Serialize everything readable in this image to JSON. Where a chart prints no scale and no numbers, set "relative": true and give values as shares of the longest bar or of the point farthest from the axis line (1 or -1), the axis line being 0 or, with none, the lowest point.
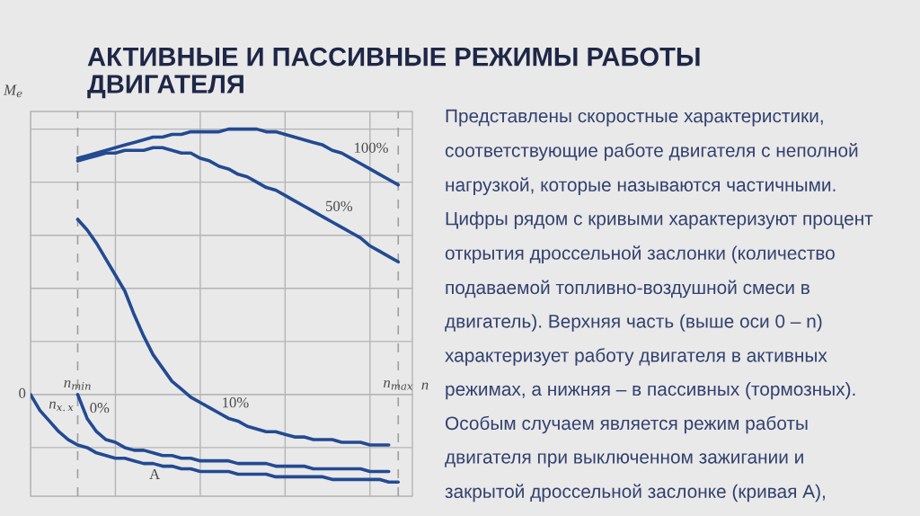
{
  "chart_data": {
    "type": "line",
    "title": "АКТИВНЫЕ И ПАССИВНЫЕ РЕЖИМЫ РАБОТЫ\nДВИГАТЕЛЯ",
    "xlabel": "n",
    "ylabel": "M$_{e}$",
    "relative": true,
    "grid": true,
    "legend": false,
    "marker": "none",
    "line_style": "solid",
    "categories": [
      null,
      null,
      null,
      null,
      null,
      "n$_{min}$",
      null,
      null,
      null,
      null,
      null,
      null,
      null,
      null,
      null,
      null,
      null,
      null,
      null,
      null,
      null,
      null,
      null,
      null,
      null,
      null,
      null,
      null,
      null,
      null,
      null,
      null,
      null,
      null,
      null,
      null,
      null,
      null,
      null,
      "n$_{max}$",
      null
    ],
    "series": [
      {
        "name": "100%",
        "color": "#234a92",
        "values": [
          null,
          null,
          null,
          null,
          null,
          0.89,
          0.9,
          0.91,
          0.92,
          0.93,
          0.94,
          0.95,
          0.96,
          0.97,
          0.97,
          0.98,
          0.98,
          0.99,
          0.99,
          0.99,
          0.99,
          1.0,
          1.0,
          1.0,
          1.0,
          0.99,
          0.99,
          0.98,
          0.97,
          0.96,
          0.95,
          0.94,
          0.92,
          0.91,
          0.89,
          0.87,
          0.85,
          0.83,
          0.81,
          0.79,
          null
        ]
      },
      {
        "name": "50%",
        "color": "#234a92",
        "values": [
          null,
          null,
          null,
          null,
          null,
          0.88,
          0.89,
          0.9,
          0.91,
          0.91,
          0.92,
          0.92,
          0.92,
          0.93,
          0.93,
          0.92,
          0.91,
          0.91,
          0.89,
          0.88,
          0.86,
          0.85,
          0.83,
          0.82,
          0.8,
          0.78,
          0.77,
          0.75,
          0.73,
          0.71,
          0.69,
          0.67,
          0.65,
          0.63,
          0.61,
          0.59,
          0.56,
          0.54,
          0.52,
          0.5,
          null
        ]
      },
      {
        "name": "10%",
        "color": "#234a92",
        "values": [
          null,
          null,
          null,
          null,
          null,
          0.66,
          0.62,
          0.57,
          0.51,
          0.45,
          0.39,
          0.3,
          0.22,
          0.15,
          0.1,
          0.05,
          0.02,
          -0.01,
          -0.03,
          -0.05,
          -0.07,
          -0.09,
          -0.1,
          -0.12,
          -0.13,
          -0.14,
          -0.14,
          -0.15,
          -0.16,
          -0.16,
          -0.17,
          -0.17,
          -0.17,
          -0.18,
          -0.18,
          -0.18,
          -0.19,
          -0.19,
          -0.19,
          null,
          null
        ]
      },
      {
        "name": "0%",
        "color": "#234a92",
        "values": [
          null,
          null,
          null,
          null,
          null,
          0,
          -0.09,
          -0.14,
          -0.17,
          -0.18,
          -0.2,
          -0.21,
          -0.21,
          -0.22,
          -0.23,
          -0.23,
          -0.24,
          -0.24,
          -0.25,
          -0.25,
          -0.25,
          -0.25,
          -0.26,
          -0.26,
          -0.26,
          -0.26,
          -0.27,
          -0.27,
          -0.27,
          -0.27,
          -0.28,
          -0.28,
          -0.28,
          -0.28,
          -0.28,
          -0.28,
          -0.29,
          -0.29,
          -0.29,
          null,
          null
        ]
      },
      {
        "name": "A",
        "color": "#234a92",
        "values": [
          0,
          -0.06,
          -0.1,
          -0.14,
          -0.17,
          -0.19,
          -0.2,
          -0.22,
          -0.23,
          -0.24,
          -0.24,
          -0.25,
          -0.26,
          -0.26,
          -0.27,
          -0.27,
          -0.28,
          -0.28,
          -0.29,
          -0.29,
          -0.29,
          -0.29,
          -0.3,
          -0.3,
          -0.3,
          -0.3,
          -0.31,
          -0.31,
          -0.31,
          -0.31,
          -0.31,
          -0.31,
          -0.32,
          -0.32,
          -0.32,
          -0.32,
          -0.32,
          -0.32,
          -0.33,
          -0.33,
          null
        ]
      }
    ],
    "annotations": [
      "0",
      "n$_{x.x}$",
      "Представлены скоростные характеристики,\nсоответствующие работе двигателя с неполной\nнагрузкой, которые называются частичными.\nЦифры рядом с кривыми характеризуют процент\nоткрытия дроссельной заслонки (количество\nподаваемой топливно-воздушной смеси в\nдвигатель). Верхняя часть (выше оси 0 – n)\nхарактеризует работу двигателя в активных\nрежимах, а нижняя – в пассивных (тормозных).\nОсобым случаем является режим работы\nдвигателя при выключенном зажигании и\nзакрытой дроссельной заслонке (кривая А),"
    ]
  }
}
